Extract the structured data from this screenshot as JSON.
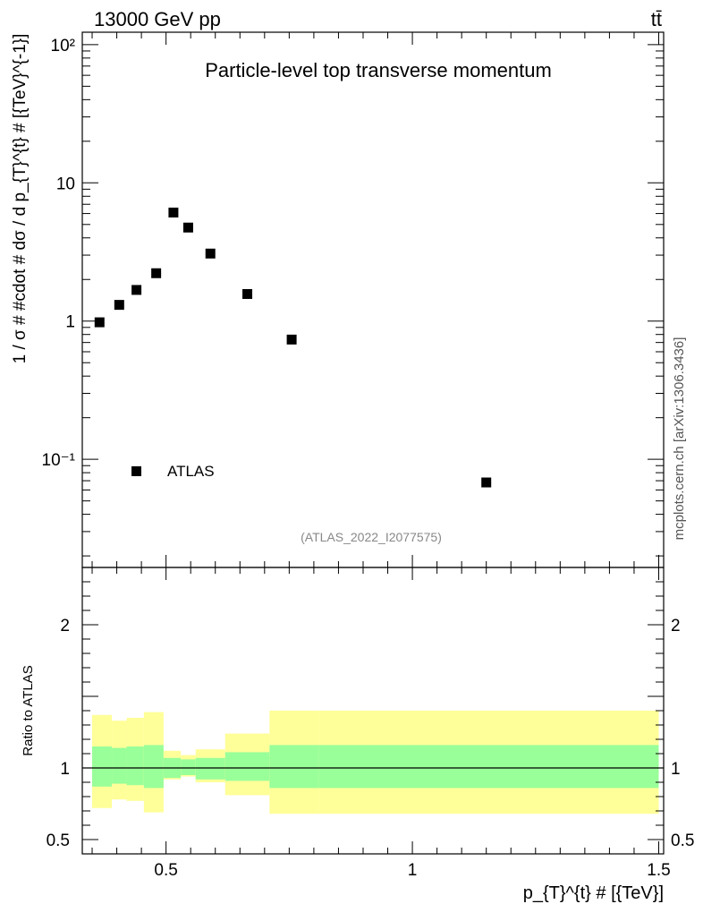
{
  "header": {
    "left": "13000 GeV pp",
    "right": "tt̄",
    "side_label": "mcplots.cern.ch [arXiv:1306.3436]"
  },
  "chart_data": {
    "type": "scatter",
    "title": "Particle-level top transverse momentum",
    "analysis_id": "(ATLAS_2022_I2077575)",
    "xlabel": "p_{T}^{t} # [{TeV}]",
    "xlim": [
      0.33,
      1.51
    ],
    "xticks": [
      0.5,
      1,
      1.5
    ],
    "xtick_labels": [
      "0.5",
      "1",
      "1.5"
    ],
    "main": {
      "ylabel": "1 / σ # #cdot # dσ / d p_{T}^{t} # [{TeV}^{-1}]",
      "yscale": "log",
      "ylim": [
        0.0165,
        123
      ],
      "yticks": [
        0.1,
        1,
        10,
        100
      ],
      "ytick_labels": [
        "10⁻¹",
        "1",
        "10",
        "10²"
      ],
      "legend": {
        "label": "ATLAS",
        "placement": "bottom-left"
      },
      "series": [
        {
          "name": "ATLAS",
          "x": [
            0.365,
            0.405,
            0.44,
            0.48,
            0.515,
            0.545,
            0.59,
            0.665,
            0.755,
            1.15
          ],
          "y": [
            0.98,
            1.31,
            1.68,
            2.22,
            6.1,
            4.75,
            3.08,
            1.57,
            0.735,
            0.068
          ]
        }
      ]
    },
    "ratio": {
      "ylabel": "Ratio to ATLAS",
      "ylim": [
        0.4,
        2.4
      ],
      "yticks": [
        0.5,
        1,
        2
      ],
      "ytick_labels": [
        "0.5",
        "1",
        "2"
      ],
      "reference": 1,
      "bands": {
        "bin_edges": [
          0.35,
          0.39,
          0.42,
          0.455,
          0.495,
          0.53,
          0.56,
          0.62,
          0.71,
          0.81,
          1.5
        ],
        "inner_low": [
          0.87,
          0.89,
          0.88,
          0.86,
          0.93,
          0.95,
          0.92,
          0.91,
          0.86,
          0.86
        ],
        "inner_high": [
          1.15,
          1.14,
          1.15,
          1.16,
          1.07,
          1.06,
          1.07,
          1.11,
          1.16,
          1.16
        ],
        "outer_low": [
          0.72,
          0.78,
          0.77,
          0.69,
          0.92,
          0.94,
          0.9,
          0.81,
          0.68,
          0.68
        ],
        "outer_high": [
          1.37,
          1.33,
          1.35,
          1.39,
          1.12,
          1.09,
          1.13,
          1.24,
          1.4,
          1.4
        ],
        "inner_color": "#99ff99",
        "outer_color": "#ffff99"
      }
    }
  }
}
